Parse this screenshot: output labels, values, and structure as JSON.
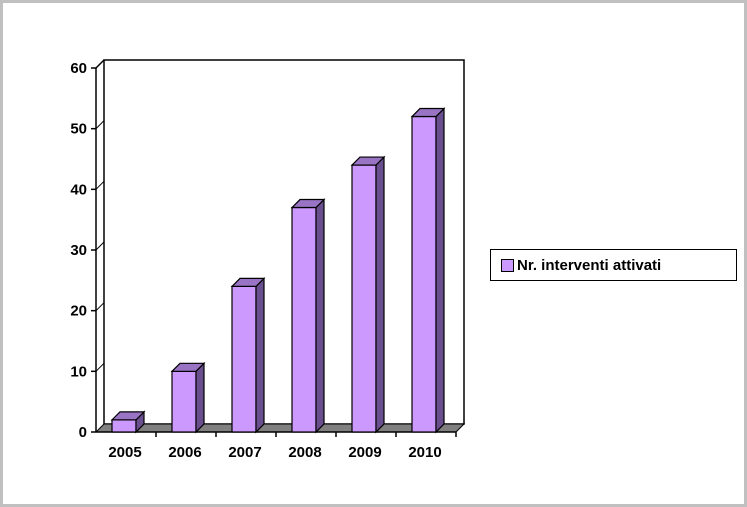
{
  "chart_data": {
    "type": "bar",
    "style": "3d-column",
    "categories": [
      "2005",
      "2006",
      "2007",
      "2008",
      "2009",
      "2010"
    ],
    "series": [
      {
        "name": "Nr. interventi attivati",
        "values": [
          2,
          10,
          24,
          37,
          44,
          52
        ]
      }
    ],
    "y_ticks": [
      "0",
      "10",
      "20",
      "30",
      "40",
      "50",
      "60"
    ],
    "ylim": [
      0,
      60
    ],
    "grid": true,
    "legend_position": "right",
    "colors": {
      "bar_front": "#cc99ff",
      "bar_side": "#6a4f8f",
      "bar_top": "#9a74c4",
      "floor": "#808080"
    }
  }
}
